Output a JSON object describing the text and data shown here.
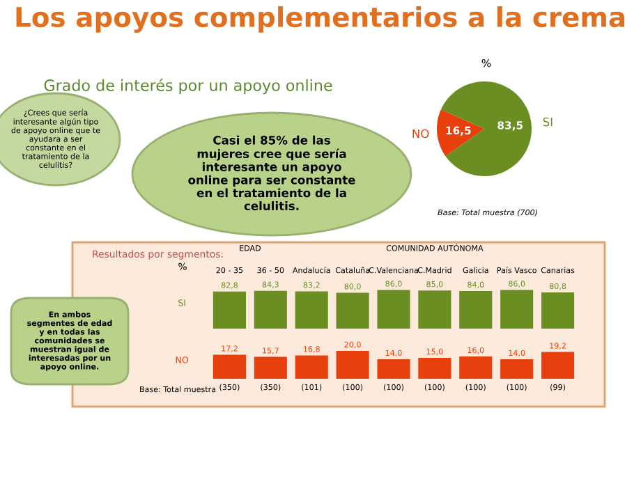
{
  "chart_data": [
    {
      "type": "pie",
      "title": "Grado de interés por un apoyo online",
      "subtitle": "%",
      "categories": [
        "NO",
        "SI"
      ],
      "values": [
        16.5,
        83.5
      ],
      "colors": [
        "#e8400c",
        "#6b8e23"
      ],
      "value_labels": [
        "16,5",
        "83,5"
      ],
      "annotations": [
        "Los apoyos complementarios a la crema",
        "¿Crees que sería interesante algún tipo de apoyo online que te ayudara a ser constante en el tratamiento de la celulitis?",
        "Casi el 85% de las mujeres cree que sería interesante un apoyo online para ser constante en el tratamiento de la celulitis.",
        "Base: Total muestra (700)"
      ]
    },
    {
      "type": "bar",
      "title": "Resultados por segmentos:",
      "ylabel": "SI",
      "subtitle": "%",
      "categories": [
        "20 - 35",
        "36 - 50",
        "Andalucía",
        "Cataluña",
        "C.Valenciana",
        "C.Madrid",
        "Galicia",
        "País Vasco",
        "Canarias"
      ],
      "series": [
        {
          "color": "#6b8e23",
          "values": [
            82.8,
            84.3,
            83.2,
            80.0,
            86.0,
            85.0,
            84.0,
            86.0,
            80.8
          ],
          "value_labels": [
            "82,8",
            "84,3",
            "83,2",
            "80,0",
            "86,0",
            "85,0",
            "84,0",
            "86,0",
            "80,8"
          ]
        }
      ],
      "annotations": [
        "EDAD",
        "COMUNIDAD AUTÓNOMA",
        "En ambos segmentes de edad y en todas las comunidades se muestran igual de interesadas por un apoyo online."
      ]
    },
    {
      "type": "bar",
      "ylabel": "NO",
      "categories": [
        null,
        null,
        null,
        null,
        null,
        null,
        null,
        null,
        null
      ],
      "series": [
        {
          "color": "#e8400c",
          "values": [
            17.2,
            15.7,
            16.8,
            20.0,
            14.0,
            15.0,
            16.0,
            14.0,
            19.2
          ],
          "value_labels": [
            "17,2",
            "15,7",
            "16,8",
            "20,0",
            "14,0",
            "15,0",
            "16,0",
            "14,0",
            "19,2"
          ]
        }
      ],
      "annotations": [
        "Base: Total muestra",
        "(350)",
        "(350)",
        "(101)",
        "(100)",
        "(100)",
        "(100)",
        "(100)",
        "(100)",
        "(99)"
      ]
    }
  ]
}
